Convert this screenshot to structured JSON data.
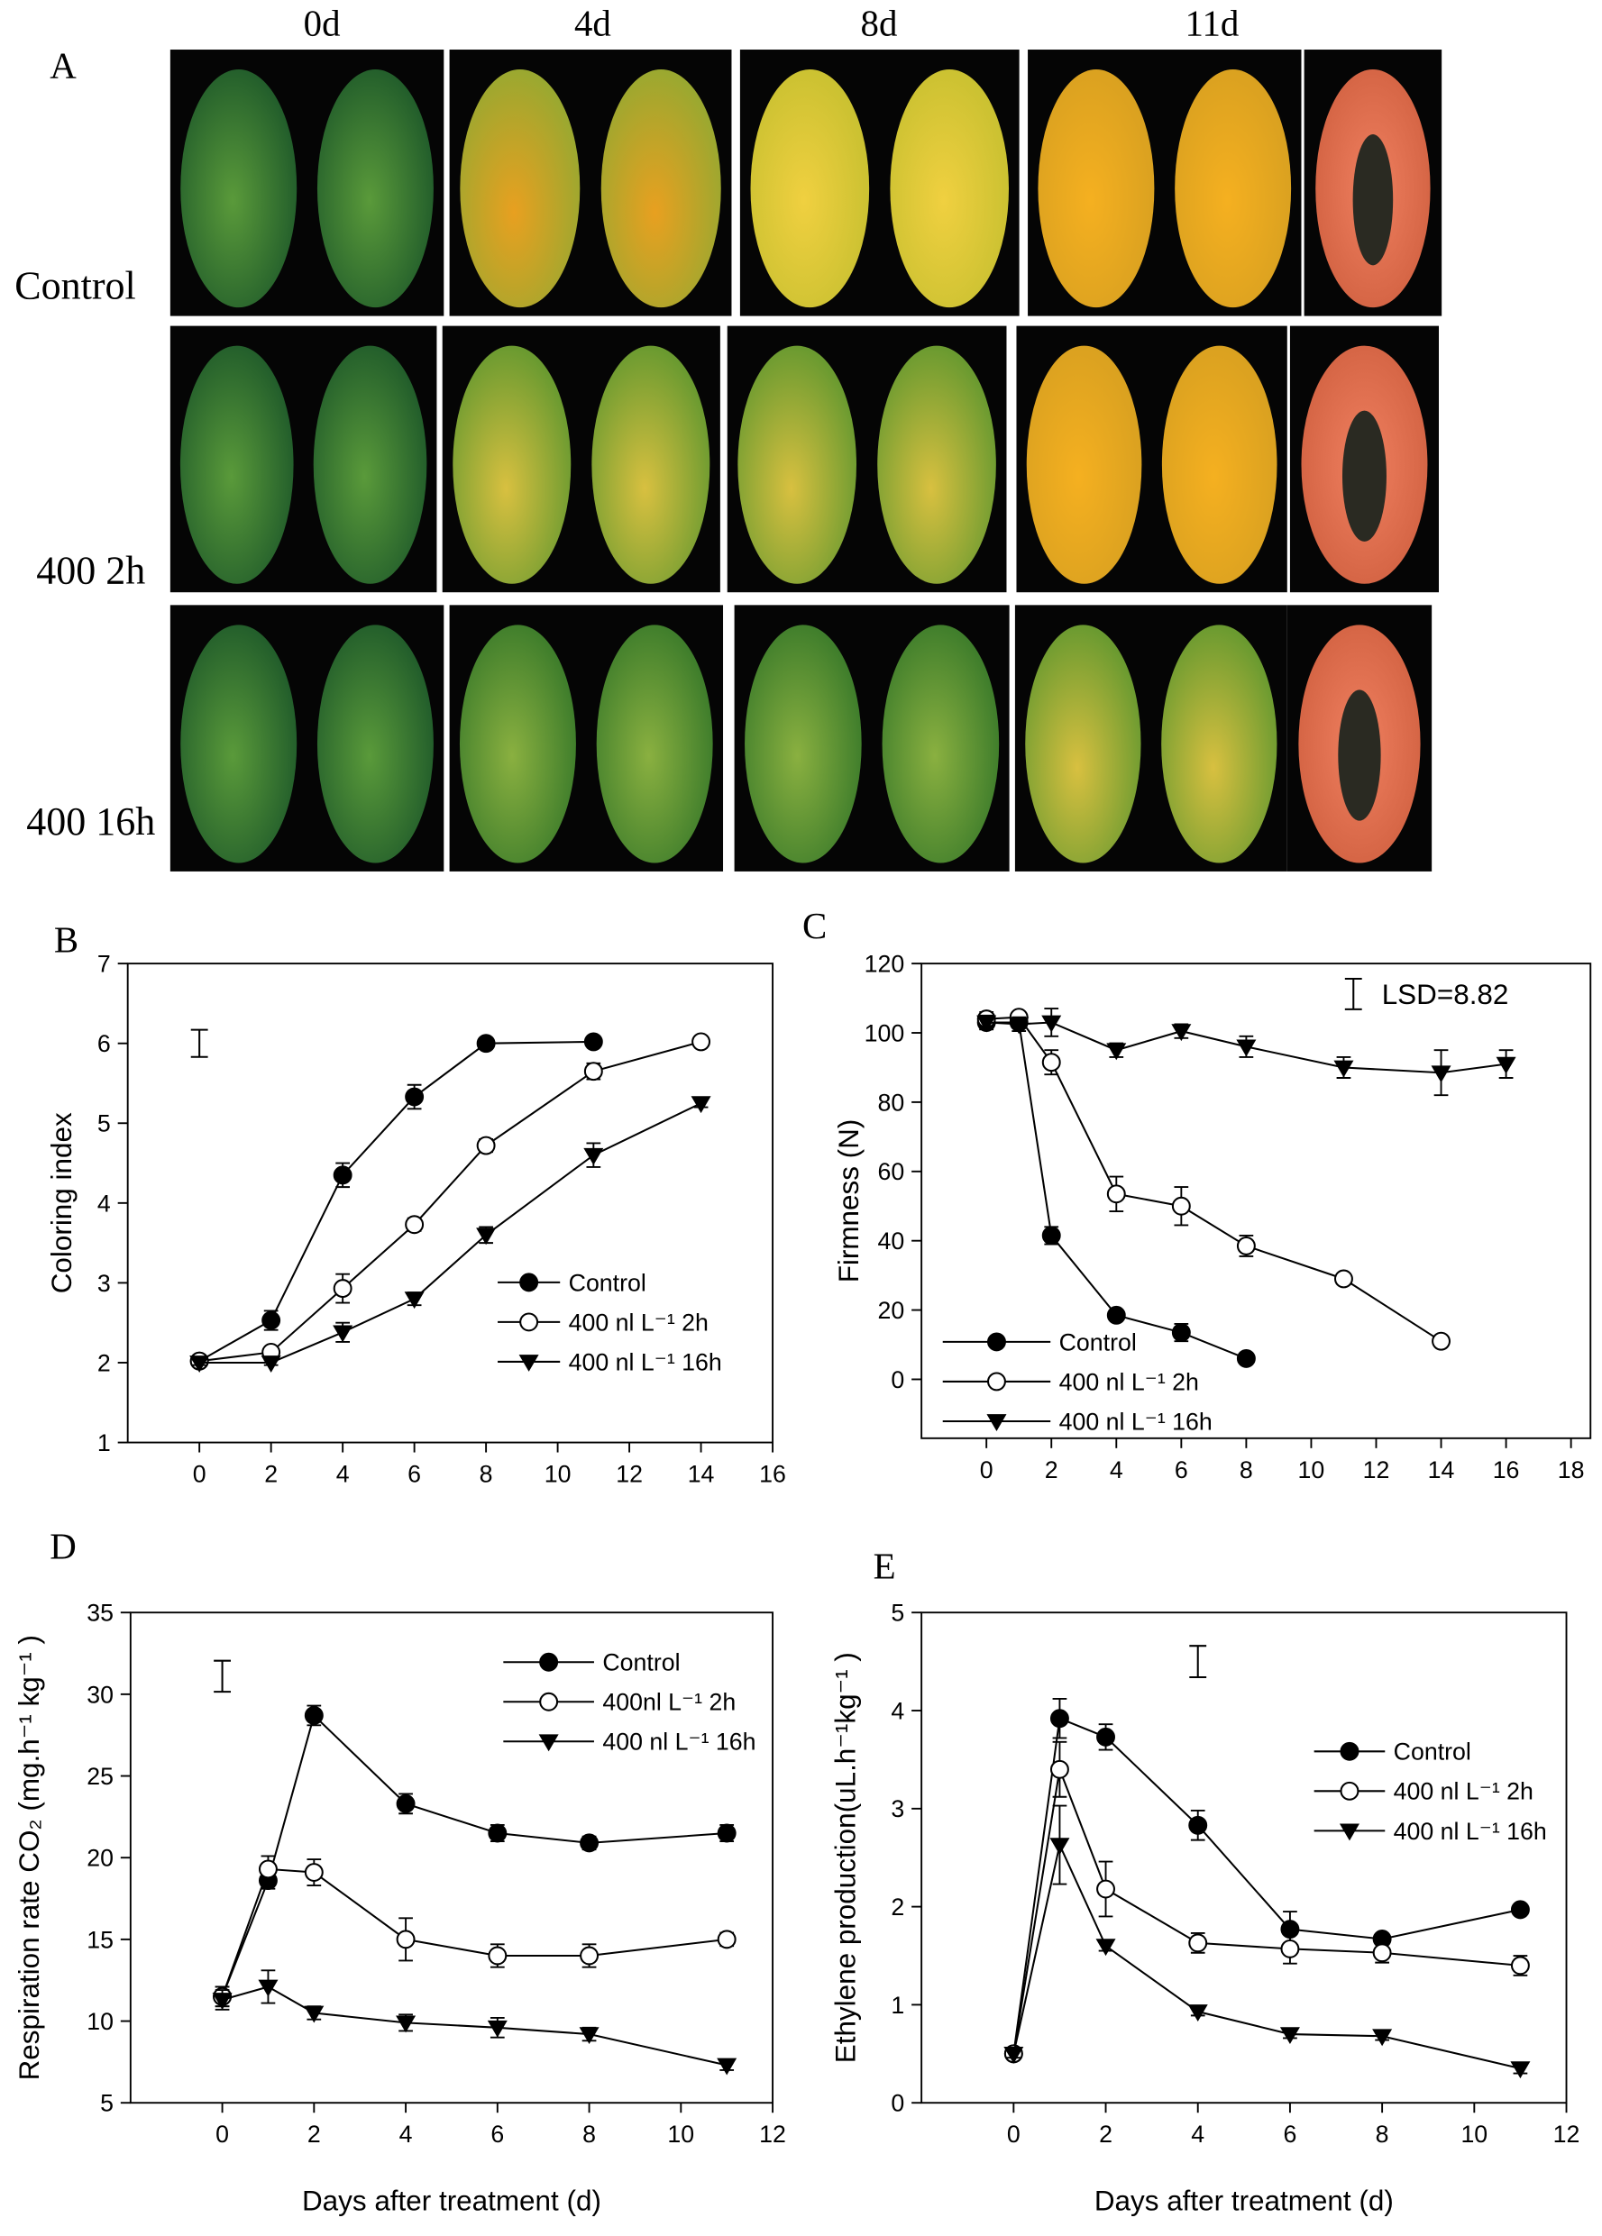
{
  "panel_a": {
    "panel_label": "A",
    "columns": [
      "0d",
      "4d",
      "8d",
      "11d"
    ],
    "rows": [
      "Control",
      "400 2h",
      "400 16h"
    ]
  },
  "chart_data": [
    {
      "type": "line",
      "panel_label": "B",
      "y_label": "Coloring index",
      "xlim": [
        -2,
        16
      ],
      "xticks": [
        0,
        2,
        4,
        6,
        8,
        10,
        12,
        14,
        16
      ],
      "ylim": [
        1,
        7
      ],
      "yticks": [
        1,
        2,
        3,
        4,
        5,
        6,
        7
      ],
      "lsd_bar": {
        "x": 0,
        "center": 6.0,
        "error": 0.17
      },
      "series": [
        {
          "name": "Control",
          "color": "#000000",
          "marker": "filled-circle",
          "x": [
            0,
            2,
            4,
            6,
            8,
            11
          ],
          "values": [
            2.02,
            2.53,
            4.35,
            5.33,
            6.0,
            6.02
          ],
          "errors": [
            0.05,
            0.12,
            0.15,
            0.15,
            0.03,
            0.03
          ]
        },
        {
          "name": "400 nl L⁻¹ 2h",
          "color": "#000000",
          "marker": "open-circle",
          "x": [
            0,
            2,
            4,
            6,
            8,
            11,
            14
          ],
          "values": [
            2.02,
            2.13,
            2.93,
            3.73,
            4.72,
            5.65,
            6.02
          ],
          "errors": [
            0.03,
            0.05,
            0.18,
            0.08,
            0.08,
            0.1,
            0.03
          ]
        },
        {
          "name": "400 nl L⁻¹ 16h",
          "color": "#000000",
          "marker": "triangle-down",
          "x": [
            0,
            2,
            4,
            6,
            8,
            11,
            14
          ],
          "values": [
            2.0,
            2.0,
            2.38,
            2.8,
            3.6,
            4.6,
            5.25
          ],
          "errors": [
            0.03,
            0.03,
            0.12,
            0.08,
            0.1,
            0.15,
            0.05
          ]
        }
      ]
    },
    {
      "type": "line",
      "panel_label": "C",
      "y_label": "Firmness (N)",
      "xlim": [
        -2,
        18.6
      ],
      "xticks": [
        0,
        2,
        4,
        6,
        8,
        10,
        12,
        14,
        16,
        18
      ],
      "ylim": [
        -17,
        120
      ],
      "yticks": [
        0,
        20,
        40,
        60,
        80,
        100,
        120
      ],
      "lsd_bar": {
        "x": 11.3,
        "center": 111.2,
        "error": 4.41
      },
      "lsd_label": "LSD=8.82",
      "series": [
        {
          "name": "Control",
          "color": "#000000",
          "marker": "filled-circle",
          "x": [
            0,
            1,
            2,
            4,
            6,
            8
          ],
          "values": [
            103,
            103,
            41.5,
            18.5,
            13.5,
            6
          ],
          "errors": [
            2,
            1.5,
            2.5,
            1.5,
            2.5,
            1.5
          ]
        },
        {
          "name": "400 nl L⁻¹ 2h",
          "color": "#000000",
          "marker": "open-circle",
          "x": [
            0,
            1,
            2,
            4,
            6,
            8,
            11,
            14
          ],
          "values": [
            104,
            104.5,
            91.5,
            53.5,
            50,
            38.5,
            29,
            11
          ],
          "errors": [
            2,
            1.5,
            3.5,
            5,
            5.5,
            3,
            1.5,
            1.5
          ]
        },
        {
          "name": "400 nl L⁻¹ 16h",
          "color": "#000000",
          "marker": "triangle-down",
          "x": [
            0,
            1,
            2,
            4,
            6,
            8,
            11,
            14,
            16
          ],
          "values": [
            103,
            102.5,
            103,
            95,
            100.5,
            96,
            90,
            88.5,
            91
          ],
          "errors": [
            2,
            2,
            4,
            2,
            2,
            3,
            3,
            6.5,
            4
          ]
        }
      ]
    },
    {
      "type": "line",
      "panel_label": "D",
      "y_label": "Respiration rate CO₂ (mg.h⁻¹ kg⁻¹ )",
      "x_label": "Days after treatment (d)",
      "xlim": [
        -2,
        12
      ],
      "xticks": [
        0,
        2,
        4,
        6,
        8,
        10,
        12
      ],
      "ylim": [
        5,
        35
      ],
      "yticks": [
        5,
        10,
        15,
        20,
        25,
        30,
        35
      ],
      "lsd_bar": {
        "x": 0,
        "center": 31.1,
        "error": 0.95
      },
      "series": [
        {
          "name": "Control",
          "color": "#000000",
          "marker": "filled-circle",
          "x": [
            0,
            1,
            2,
            4,
            6,
            8,
            11
          ],
          "values": [
            11.5,
            18.6,
            28.7,
            23.3,
            21.5,
            20.9,
            21.5
          ],
          "errors": [
            0.6,
            0.5,
            0.6,
            0.6,
            0.5,
            0.4,
            0.5
          ]
        },
        {
          "name": "400nl L⁻¹ 2h",
          "color": "#000000",
          "marker": "open-circle",
          "x": [
            0,
            1,
            2,
            4,
            6,
            8,
            11
          ],
          "values": [
            11.5,
            19.3,
            19.1,
            15.0,
            14.0,
            14.0,
            15.0
          ],
          "errors": [
            0.6,
            0.8,
            0.8,
            1.3,
            0.7,
            0.7,
            0.4
          ]
        },
        {
          "name": "400 nl L⁻¹ 16h",
          "color": "#000000",
          "marker": "triangle-down",
          "x": [
            0,
            1,
            2,
            4,
            6,
            8,
            11
          ],
          "values": [
            11.3,
            12.1,
            10.5,
            9.9,
            9.6,
            9.2,
            7.3
          ],
          "errors": [
            0.6,
            1.0,
            0.4,
            0.5,
            0.6,
            0.4,
            0.3
          ]
        }
      ]
    },
    {
      "type": "line",
      "panel_label": "E",
      "y_label": "Ethylene production(uL.h⁻¹kg⁻¹ )",
      "x_label": "Days after treatment (d)",
      "xlim": [
        -2,
        12
      ],
      "xticks": [
        0,
        2,
        4,
        6,
        8,
        10,
        12
      ],
      "ylim": [
        0,
        5
      ],
      "yticks": [
        0,
        1,
        2,
        3,
        4,
        5
      ],
      "lsd_bar": {
        "x": 4,
        "center": 4.5,
        "error": 0.16
      },
      "series": [
        {
          "name": "Control",
          "color": "#000000",
          "marker": "filled-circle",
          "x": [
            0,
            1,
            2,
            4,
            6,
            8,
            11
          ],
          "values": [
            0.5,
            3.92,
            3.73,
            2.83,
            1.77,
            1.67,
            1.97
          ],
          "errors": [
            0.04,
            0.2,
            0.13,
            0.15,
            0.18,
            0.05,
            0.05
          ]
        },
        {
          "name": "400 nl L⁻¹ 2h",
          "color": "#000000",
          "marker": "open-circle",
          "x": [
            0,
            1,
            2,
            4,
            6,
            8,
            11
          ],
          "values": [
            0.5,
            3.4,
            2.18,
            1.63,
            1.57,
            1.53,
            1.4
          ],
          "errors": [
            0.04,
            0.28,
            0.28,
            0.1,
            0.15,
            0.1,
            0.1
          ]
        },
        {
          "name": "400 nl L⁻¹ 16h",
          "color": "#000000",
          "marker": "triangle-down",
          "x": [
            0,
            1,
            2,
            4,
            6,
            8,
            11
          ],
          "values": [
            0.5,
            2.63,
            1.6,
            0.93,
            0.7,
            0.68,
            0.35
          ],
          "errors": [
            0.04,
            0.4,
            0.05,
            0.04,
            0.04,
            0.04,
            0.05
          ]
        }
      ]
    }
  ]
}
